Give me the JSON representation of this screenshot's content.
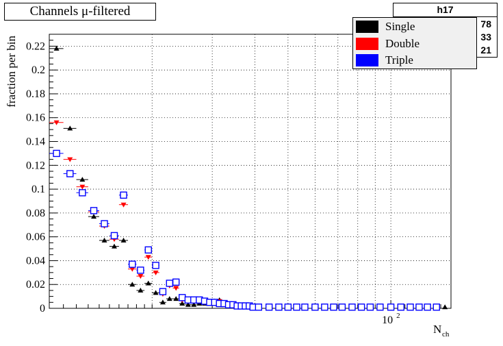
{
  "chart_data": {
    "type": "scatter",
    "title": "Channels μ-filtered",
    "xlabel": "N",
    "xlabel_subscript": "ch",
    "ylabel": "fraction per bin",
    "x_scale": "log",
    "xlim": [
      10,
      150
    ],
    "ylim": [
      0,
      0.23
    ],
    "x_tick_labels": [
      {
        "value": 100,
        "base": "10",
        "exp": "2"
      }
    ],
    "y_ticks": [
      0,
      0.02,
      0.04,
      0.06,
      0.08,
      0.1,
      0.12,
      0.14,
      0.16,
      0.18,
      0.2,
      0.22
    ],
    "y_tick_labels": [
      "0",
      "0.02",
      "0.04",
      "0.06",
      "0.08",
      "0.1",
      "0.12",
      "0.14",
      "0.16",
      "0.18",
      "0.2",
      "0.22"
    ],
    "grid": true,
    "legend_position": "top-right",
    "stats_box": {
      "name": "h17",
      "rows_visible": [
        "78",
        "33",
        "21"
      ]
    },
    "series": [
      {
        "name": "Single",
        "color": "#000000",
        "marker": "triangle-up",
        "x": [
          10.5,
          11.5,
          12.5,
          13.5,
          14.5,
          15.5,
          16.5,
          17.5,
          18.5,
          19.5,
          20.5,
          21.5,
          22.5,
          23.5,
          24.5,
          25.5,
          26.5,
          27.5,
          28.5,
          29.5,
          30.5,
          31.5,
          32.5,
          33.5,
          34.5,
          35.5,
          36.5,
          37.5,
          38.5,
          39.5,
          41,
          44,
          47,
          50,
          53,
          56,
          60,
          64,
          68,
          72,
          77,
          82,
          87,
          93,
          100,
          107,
          114,
          121,
          128,
          136,
          144
        ],
        "y": [
          0.218,
          0.151,
          0.108,
          0.077,
          0.057,
          0.052,
          0.057,
          0.02,
          0.015,
          0.021,
          0.013,
          0.005,
          0.008,
          0.008,
          0.004,
          0.003,
          0.003,
          0.004,
          0.004,
          0.005,
          0.006,
          0.007,
          0.004,
          0.002,
          0.002,
          0.001,
          0.001,
          0.001,
          0.001,
          0.001,
          0.001,
          0.001,
          0.001,
          0.001,
          0.001,
          0.001,
          0.001,
          0.001,
          0.001,
          0.001,
          0.001,
          0.001,
          0.001,
          0.001,
          0.001,
          0.001,
          0.001,
          0.001,
          0.001,
          0.001,
          0.001
        ]
      },
      {
        "name": "Double",
        "color": "#ff0000",
        "marker": "triangle-down",
        "x": [
          10.5,
          11.5,
          12.5,
          13.5,
          14.5,
          15.5,
          16.5,
          17.5,
          18.5,
          19.5,
          20.5,
          21.5,
          22.5,
          23.5,
          24.5,
          25.5,
          26.5,
          27.5,
          28.5,
          29.5,
          30.5,
          31.5,
          32.5,
          33.5,
          34.5,
          35.5,
          36.5,
          37.5,
          38.5,
          39.5,
          41,
          44,
          47,
          50,
          53,
          56,
          60,
          64,
          68,
          72,
          77,
          82,
          87,
          93,
          100,
          107,
          114,
          121,
          128,
          136
        ],
        "y": [
          0.156,
          0.125,
          0.102,
          0.081,
          0.069,
          0.058,
          0.087,
          0.033,
          0.027,
          0.043,
          0.03,
          0.012,
          0.019,
          0.017,
          0.007,
          0.006,
          0.006,
          0.006,
          0.005,
          0.005,
          0.005,
          0.006,
          0.004,
          0.003,
          0.002,
          0.002,
          0.002,
          0.002,
          0.001,
          0.001,
          0.001,
          0.001,
          0.001,
          0.001,
          0.001,
          0.001,
          0.001,
          0.001,
          0.001,
          0.001,
          0.001,
          0.001,
          0.001,
          0.001,
          0.001,
          0.001,
          0.001,
          0.001,
          0.001,
          0.001
        ]
      },
      {
        "name": "Triple",
        "color": "#0000ff",
        "marker": "open-square",
        "x": [
          10.5,
          11.5,
          12.5,
          13.5,
          14.5,
          15.5,
          16.5,
          17.5,
          18.5,
          19.5,
          20.5,
          21.5,
          22.5,
          23.5,
          24.5,
          25.5,
          26.5,
          27.5,
          28.5,
          29.5,
          30.5,
          31.5,
          32.5,
          33.5,
          34.5,
          35.5,
          36.5,
          37.5,
          38.5,
          39.5,
          41,
          44,
          47,
          50,
          53,
          56,
          60,
          64,
          68,
          72,
          77,
          82,
          87,
          93,
          100,
          107,
          114,
          121,
          128,
          136
        ],
        "y": [
          0.13,
          0.113,
          0.097,
          0.082,
          0.071,
          0.061,
          0.095,
          0.037,
          0.032,
          0.049,
          0.036,
          0.014,
          0.021,
          0.022,
          0.009,
          0.007,
          0.007,
          0.007,
          0.006,
          0.005,
          0.005,
          0.004,
          0.004,
          0.003,
          0.003,
          0.002,
          0.002,
          0.002,
          0.002,
          0.001,
          0.001,
          0.001,
          0.001,
          0.001,
          0.001,
          0.001,
          0.001,
          0.001,
          0.001,
          0.001,
          0.001,
          0.001,
          0.001,
          0.001,
          0.001,
          0.001,
          0.001,
          0.001,
          0.001,
          0.001
        ]
      }
    ]
  }
}
